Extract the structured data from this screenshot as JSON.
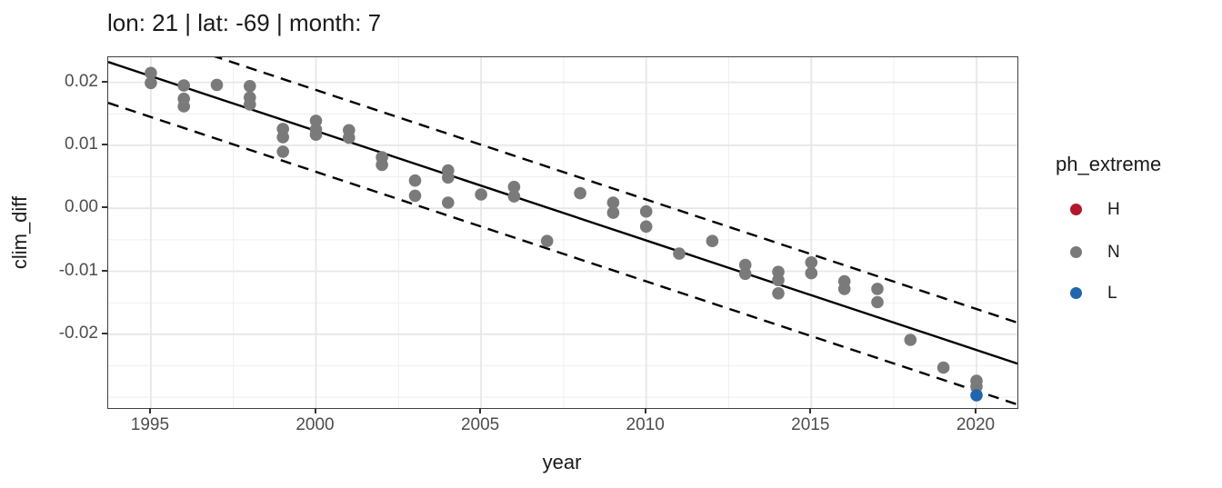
{
  "title": "lon: 21 | lat: -69 | month: 7",
  "chart_data": {
    "type": "scatter",
    "title": "lon: 21 | lat: -69 | month: 7",
    "xlabel": "year",
    "ylabel": "clim_diff",
    "xlim": [
      1993.71,
      2021.24
    ],
    "ylim": [
      -0.03172,
      0.02399
    ],
    "grid": true,
    "x_ticks": [
      {
        "value": 1995,
        "label": "1995"
      },
      {
        "value": 2000,
        "label": "2000"
      },
      {
        "value": 2005,
        "label": "2005"
      },
      {
        "value": 2010,
        "label": "2010"
      },
      {
        "value": 2015,
        "label": "2015"
      },
      {
        "value": 2020,
        "label": "2020"
      }
    ],
    "x_minor": [
      1997.5,
      2002.5,
      2007.5,
      2012.5,
      2017.5
    ],
    "y_ticks": [
      {
        "value": 0.02,
        "label": "0.02"
      },
      {
        "value": 0.01,
        "label": "0.01"
      },
      {
        "value": 0.0,
        "label": "0.00"
      },
      {
        "value": -0.01,
        "label": "-0.01"
      },
      {
        "value": -0.02,
        "label": "-0.02"
      }
    ],
    "y_minor": [
      0.015,
      0.005,
      -0.005,
      -0.015,
      -0.025,
      -0.03
    ],
    "colors": {
      "grid_major": "#e7e7e7",
      "grid_minor": "#efefef",
      "panel_border": "#404040",
      "line": "#000000",
      "tick_text": "#4d4d4d",
      "title_text": "#1a1a1a"
    },
    "legend": {
      "title": "ph_extreme",
      "position": "right",
      "entries": [
        {
          "label": "H",
          "color": "#b2182b"
        },
        {
          "label": "N",
          "color": "#7a7a7a"
        },
        {
          "label": "L",
          "color": "#2166ac"
        }
      ]
    },
    "series": [
      {
        "name": "N",
        "color": "#7a7a7a",
        "points": [
          [
            1995,
            0.0215
          ],
          [
            1995,
            0.0199
          ],
          [
            1996,
            0.0195
          ],
          [
            1996,
            0.0174
          ],
          [
            1996,
            0.0162
          ],
          [
            1997,
            0.0196
          ],
          [
            1998,
            0.0194
          ],
          [
            1998,
            0.0176
          ],
          [
            1998,
            0.0165
          ],
          [
            1999,
            0.0126
          ],
          [
            1999,
            0.0113
          ],
          [
            1999,
            0.009
          ],
          [
            2000,
            0.0139
          ],
          [
            2000,
            0.0125
          ],
          [
            2000,
            0.0117
          ],
          [
            2001,
            0.0124
          ],
          [
            2001,
            0.0112
          ],
          [
            2002,
            0.0081
          ],
          [
            2002,
            0.0069
          ],
          [
            2003,
            0.0044
          ],
          [
            2003,
            0.002
          ],
          [
            2004,
            0.006
          ],
          [
            2004,
            0.0049
          ],
          [
            2004,
            0.0009
          ],
          [
            2005,
            0.0022
          ],
          [
            2006,
            0.0034
          ],
          [
            2006,
            0.0019
          ],
          [
            2007,
            -0.0052
          ],
          [
            2008,
            0.0024
          ],
          [
            2009,
            0.0009
          ],
          [
            2009,
            -0.0007
          ],
          [
            2010,
            -0.0005
          ],
          [
            2010,
            -0.0029
          ],
          [
            2011,
            -0.0072
          ],
          [
            2012,
            -0.0052
          ],
          [
            2013,
            -0.009
          ],
          [
            2013,
            -0.0104
          ],
          [
            2014,
            -0.0101
          ],
          [
            2014,
            -0.0114
          ],
          [
            2014,
            -0.0135
          ],
          [
            2015,
            -0.0086
          ],
          [
            2015,
            -0.0103
          ],
          [
            2016,
            -0.0116
          ],
          [
            2016,
            -0.0128
          ],
          [
            2017,
            -0.0128
          ],
          [
            2017,
            -0.0149
          ],
          [
            2018,
            -0.0209
          ],
          [
            2019,
            -0.0253
          ],
          [
            2020,
            -0.0274
          ],
          [
            2020,
            -0.0283
          ]
        ]
      },
      {
        "name": "L",
        "color": "#2166ac",
        "points": [
          [
            2020,
            -0.0297
          ]
        ]
      },
      {
        "name": "H",
        "color": "#b2182b",
        "points": []
      }
    ],
    "lines": [
      {
        "name": "fit-line",
        "style": "solid",
        "x1": 1993.71,
        "y1": 0.02324,
        "x2": 2021.24,
        "y2": -0.02466
      },
      {
        "name": "upper-band",
        "style": "dashed",
        "x1": 1993.71,
        "y1": 0.02974,
        "x2": 2021.24,
        "y2": -0.01816
      },
      {
        "name": "lower-band",
        "style": "dashed",
        "x1": 1993.71,
        "y1": 0.01674,
        "x2": 2021.24,
        "y2": -0.03116
      }
    ]
  }
}
